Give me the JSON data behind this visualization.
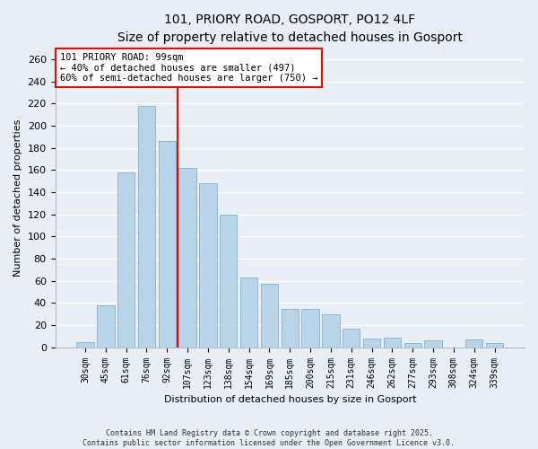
{
  "title": "101, PRIORY ROAD, GOSPORT, PO12 4LF",
  "subtitle": "Size of property relative to detached houses in Gosport",
  "xlabel": "Distribution of detached houses by size in Gosport",
  "ylabel": "Number of detached properties",
  "categories": [
    "30sqm",
    "45sqm",
    "61sqm",
    "76sqm",
    "92sqm",
    "107sqm",
    "123sqm",
    "138sqm",
    "154sqm",
    "169sqm",
    "185sqm",
    "200sqm",
    "215sqm",
    "231sqm",
    "246sqm",
    "262sqm",
    "277sqm",
    "293sqm",
    "308sqm",
    "324sqm",
    "339sqm"
  ],
  "values": [
    5,
    38,
    158,
    218,
    186,
    162,
    148,
    120,
    63,
    57,
    35,
    35,
    30,
    17,
    8,
    9,
    4,
    6,
    0,
    7,
    4
  ],
  "bar_color": "#b8d4e8",
  "bar_edge_color": "#8ab0cc",
  "vline_bar_index": 4.5,
  "vline_color": "red",
  "annotation_line1": "101 PRIORY ROAD: 99sqm",
  "annotation_line2": "← 40% of detached houses are smaller (497)",
  "annotation_line3": "60% of semi-detached houses are larger (750) →",
  "ylim": [
    0,
    270
  ],
  "yticks": [
    0,
    20,
    40,
    60,
    80,
    100,
    120,
    140,
    160,
    180,
    200,
    220,
    240,
    260
  ],
  "background_color": "#e8eef5",
  "grid_color": "#ffffff",
  "footer": "Contains HM Land Registry data © Crown copyright and database right 2025.\nContains public sector information licensed under the Open Government Licence v3.0.",
  "title_fontsize": 10,
  "subtitle_fontsize": 9,
  "ylabel_fontsize": 8,
  "xlabel_fontsize": 8,
  "tick_fontsize": 7,
  "footer_fontsize": 6
}
